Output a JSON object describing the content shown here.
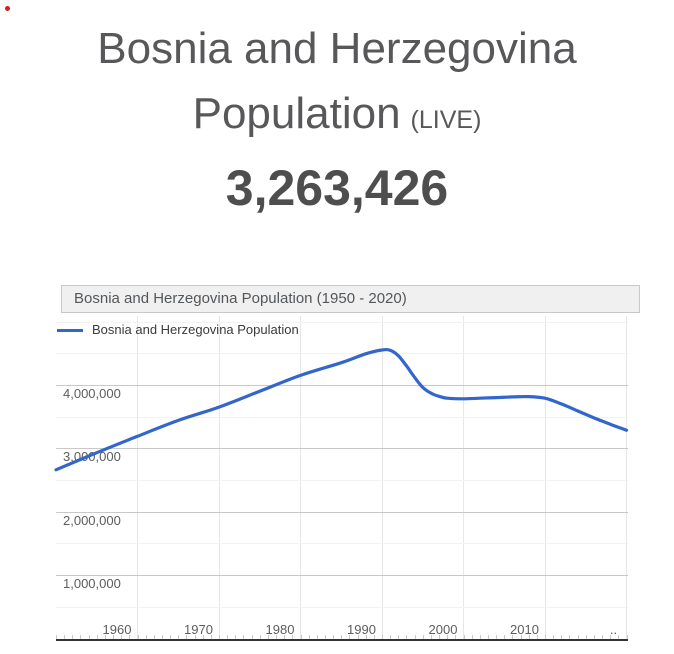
{
  "page": {
    "title_line1": "Bosnia and Herzegovina",
    "title_line2": "Population",
    "live_tag": "(LIVE)",
    "live_count": "3,263,426"
  },
  "chart": {
    "header_title": "Bosnia and Herzegovina Population (1950 - 2020)",
    "legend_label": "Bosnia and Herzegovina Population"
  },
  "colors": {
    "line": "#3366cc",
    "title_text": "#58585a",
    "counter_text": "#4e4e4e",
    "header_bg": "#f0f0f0",
    "header_border": "#c9c9c9",
    "grid_major": "#c9c9c9",
    "grid_minor": "#f2f2f2",
    "grid_vertical": "#e7e7e7",
    "axis_line": "#333333"
  },
  "chart_data": {
    "type": "line",
    "title": "Bosnia and Herzegovina Population (1950 - 2020)",
    "legend_position": "in-top-left",
    "grid": true,
    "xlabel": "",
    "ylabel": "",
    "xlim": [
      1950,
      2020
    ],
    "ylim": [
      0,
      5000000
    ],
    "x_tick_labels": [
      "1960",
      "1970",
      "1980",
      "1990",
      "2000",
      "2010"
    ],
    "x_tick_years": [
      1960,
      1970,
      1980,
      1990,
      2000,
      2010
    ],
    "x_last_tick_label": "..",
    "x_grid_years": [
      1960,
      1970,
      1980,
      1990,
      2000,
      2010,
      2020
    ],
    "y_major_ticks": [
      {
        "value": 4000000,
        "label": "4,000,000"
      },
      {
        "value": 3000000,
        "label": "3,000,000"
      },
      {
        "value": 2000000,
        "label": "2,000,000"
      },
      {
        "value": 1000000,
        "label": "1,000,000"
      }
    ],
    "y_minor_tick_values": [
      5000000,
      4500000,
      3500000,
      2500000,
      1500000,
      500000
    ],
    "series": [
      {
        "name": "Bosnia and Herzegovina Population",
        "color": "#3366cc",
        "points": [
          [
            1950,
            2661000
          ],
          [
            1955,
            2930000
          ],
          [
            1960,
            3190000
          ],
          [
            1965,
            3440000
          ],
          [
            1970,
            3650000
          ],
          [
            1975,
            3900000
          ],
          [
            1980,
            4150000
          ],
          [
            1985,
            4350000
          ],
          [
            1988,
            4490000
          ],
          [
            1990,
            4550000
          ],
          [
            1991,
            4545000
          ],
          [
            1992,
            4460000
          ],
          [
            1993,
            4300000
          ],
          [
            1994,
            4120000
          ],
          [
            1995,
            3960000
          ],
          [
            1996,
            3870000
          ],
          [
            1997,
            3820000
          ],
          [
            1998,
            3790000
          ],
          [
            2000,
            3780000
          ],
          [
            2002,
            3790000
          ],
          [
            2004,
            3800000
          ],
          [
            2006,
            3810000
          ],
          [
            2008,
            3815000
          ],
          [
            2010,
            3790000
          ],
          [
            2012,
            3700000
          ],
          [
            2014,
            3590000
          ],
          [
            2016,
            3480000
          ],
          [
            2018,
            3380000
          ],
          [
            2020,
            3285000
          ]
        ]
      }
    ]
  }
}
